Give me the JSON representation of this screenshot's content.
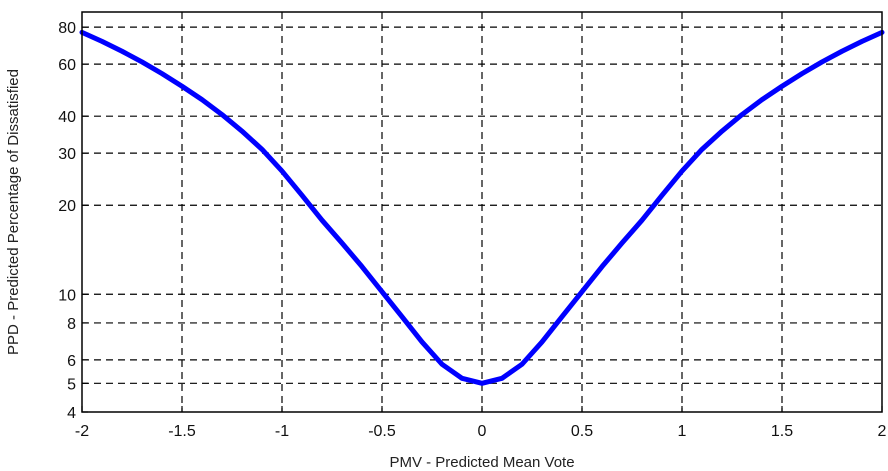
{
  "chart_data": {
    "type": "line",
    "xlabel": "PMV - Predicted Mean Vote",
    "ylabel": "PPD - Predicted Percentage of Dissatisfied",
    "xlim": [
      -2,
      2
    ],
    "ylim": [
      4,
      90
    ],
    "y_scale": "log",
    "grid": true,
    "x_ticks": [
      -2,
      -1.5,
      -1,
      -0.5,
      0,
      0.5,
      1,
      1.5,
      2
    ],
    "x_tick_labels": [
      "-2",
      "-1.5",
      "-1",
      "-0.5",
      "0",
      "0.5",
      "1",
      "1.5",
      "2"
    ],
    "y_ticks": [
      4,
      5,
      6,
      8,
      10,
      20,
      30,
      40,
      60,
      80
    ],
    "y_tick_labels": [
      "4",
      "5",
      "6",
      "8",
      "10",
      "20",
      "30",
      "40",
      "60",
      "80"
    ],
    "series": [
      {
        "color": "#0000ff",
        "x": [
          -2.0,
          -1.9,
          -1.8,
          -1.7,
          -1.6,
          -1.5,
          -1.4,
          -1.3,
          -1.2,
          -1.1,
          -1.0,
          -0.9,
          -0.8,
          -0.7,
          -0.6,
          -0.5,
          -0.4,
          -0.3,
          -0.2,
          -0.1,
          0.0,
          0.1,
          0.2,
          0.3,
          0.4,
          0.5,
          0.6,
          0.7,
          0.8,
          0.9,
          1.0,
          1.1,
          1.2,
          1.3,
          1.4,
          1.5,
          1.6,
          1.7,
          1.8,
          1.9,
          2.0
        ],
        "y": [
          76.8,
          71.6,
          66.3,
          61.0,
          55.7,
          50.5,
          45.5,
          40.5,
          35.6,
          30.9,
          26.1,
          21.6,
          17.8,
          14.9,
          12.4,
          10.2,
          8.4,
          6.9,
          5.8,
          5.2,
          5.0,
          5.2,
          5.8,
          6.9,
          8.4,
          10.2,
          12.4,
          14.9,
          17.8,
          21.6,
          26.1,
          30.9,
          35.6,
          40.5,
          45.5,
          50.5,
          55.7,
          61.0,
          66.3,
          71.6,
          76.8
        ]
      }
    ]
  }
}
